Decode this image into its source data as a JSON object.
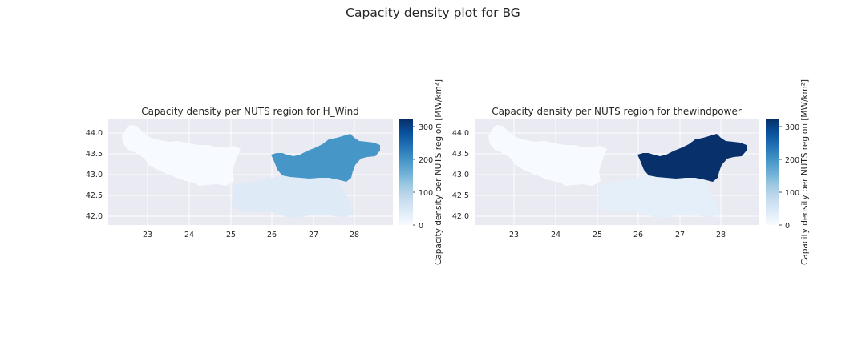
{
  "figure_title": "Capacity density plot for BG",
  "colormap": {
    "name": "Blues",
    "low": "#f7fbff",
    "mid": "#6baed6",
    "high": "#08306b"
  },
  "chart_data": [
    {
      "type": "choropleth",
      "title": "Capacity density per NUTS region for H_Wind",
      "x_ticks": [
        "23",
        "24",
        "25",
        "26",
        "27",
        "28"
      ],
      "y_ticks": [
        "44.0",
        "43.5",
        "43.0",
        "42.5",
        "42.0"
      ],
      "colorbar": {
        "label": "Capacity density per NUTS region [MW/km²]",
        "ticks": [
          "0",
          "100",
          "200",
          "300"
        ],
        "range": [
          0,
          320
        ]
      },
      "regions": [
        {
          "region": "north-west",
          "value": 0
        },
        {
          "region": "south",
          "value": 40
        },
        {
          "region": "north-east",
          "value": 195
        }
      ]
    },
    {
      "type": "choropleth",
      "title": "Capacity density per NUTS region for thewindpower",
      "x_ticks": [
        "23",
        "24",
        "25",
        "26",
        "27",
        "28"
      ],
      "y_ticks": [
        "44.0",
        "43.5",
        "43.0",
        "42.5",
        "42.0"
      ],
      "colorbar": {
        "label": "Capacity density per NUTS region [MW/km²]",
        "ticks": [
          "0",
          "100",
          "200",
          "300"
        ],
        "range": [
          0,
          320
        ]
      },
      "regions": [
        {
          "region": "north-west",
          "value": 0
        },
        {
          "region": "south",
          "value": 30
        },
        {
          "region": "north-east",
          "value": 320
        }
      ]
    }
  ]
}
